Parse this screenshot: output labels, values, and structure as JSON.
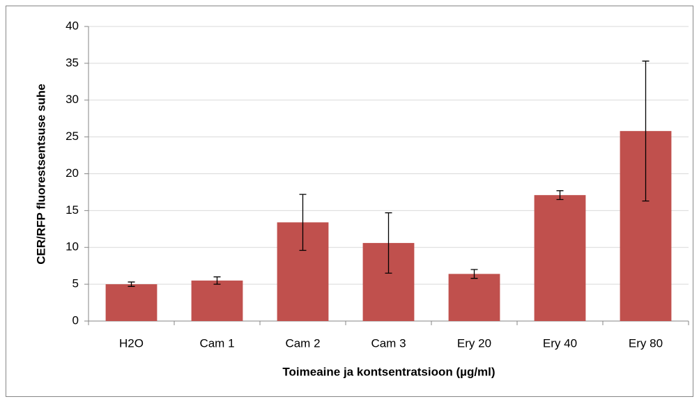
{
  "chart_data": {
    "type": "bar",
    "xlabel": "Toimeaine ja kontsentratsioon (µg/ml)",
    "ylabel": "CER/RFP fluorestsentsuse suhe",
    "categories": [
      "H2O",
      "Cam 1",
      "Cam 2",
      "Cam 3",
      "Ery 20",
      "Ery 40",
      "Ery 80"
    ],
    "values": [
      5.0,
      5.5,
      13.4,
      10.6,
      6.4,
      17.1,
      25.8
    ],
    "errors": [
      0.3,
      0.5,
      3.8,
      4.1,
      0.6,
      0.6,
      9.5
    ],
    "color": "#c0504d",
    "ylim": [
      0,
      40
    ],
    "yticks": [
      0,
      5,
      10,
      15,
      20,
      25,
      30,
      35,
      40
    ],
    "grid": true
  }
}
